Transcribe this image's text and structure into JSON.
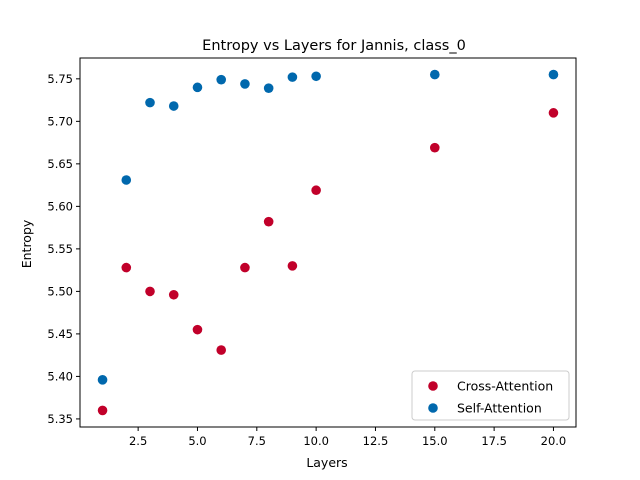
{
  "chart_data": {
    "type": "scatter",
    "title": "Entropy vs Layers for Jannis, class_0",
    "xlabel": "Layers",
    "ylabel": "Entropy",
    "xlim": [
      0.05,
      20.95
    ],
    "ylim": [
      5.3405,
      5.7745
    ],
    "xticks": [
      2.5,
      5.0,
      7.5,
      10.0,
      12.5,
      15.0,
      17.5,
      20.0
    ],
    "xtick_labels": [
      "2.5",
      "5.0",
      "7.5",
      "10.0",
      "12.5",
      "15.0",
      "17.5",
      "20.0"
    ],
    "yticks": [
      5.35,
      5.4,
      5.45,
      5.5,
      5.55,
      5.6,
      5.65,
      5.7,
      5.75
    ],
    "ytick_labels": [
      "5.35",
      "5.40",
      "5.45",
      "5.50",
      "5.55",
      "5.60",
      "5.65",
      "5.70",
      "5.75"
    ],
    "grid": false,
    "legend_position": "lower right",
    "series": [
      {
        "name": "Cross-Attention",
        "color": "#c1002a",
        "x": [
          1,
          2,
          3,
          4,
          5,
          6,
          7,
          8,
          9,
          10,
          15,
          20
        ],
        "y": [
          5.36,
          5.528,
          5.5,
          5.496,
          5.455,
          5.431,
          5.528,
          5.582,
          5.53,
          5.619,
          5.669,
          5.71
        ]
      },
      {
        "name": "Self-Attention",
        "color": "#0068ad",
        "x": [
          1,
          2,
          3,
          4,
          5,
          6,
          7,
          8,
          9,
          10,
          15,
          20
        ],
        "y": [
          5.396,
          5.631,
          5.722,
          5.718,
          5.74,
          5.749,
          5.744,
          5.739,
          5.752,
          5.753,
          5.755,
          5.755
        ]
      }
    ]
  }
}
